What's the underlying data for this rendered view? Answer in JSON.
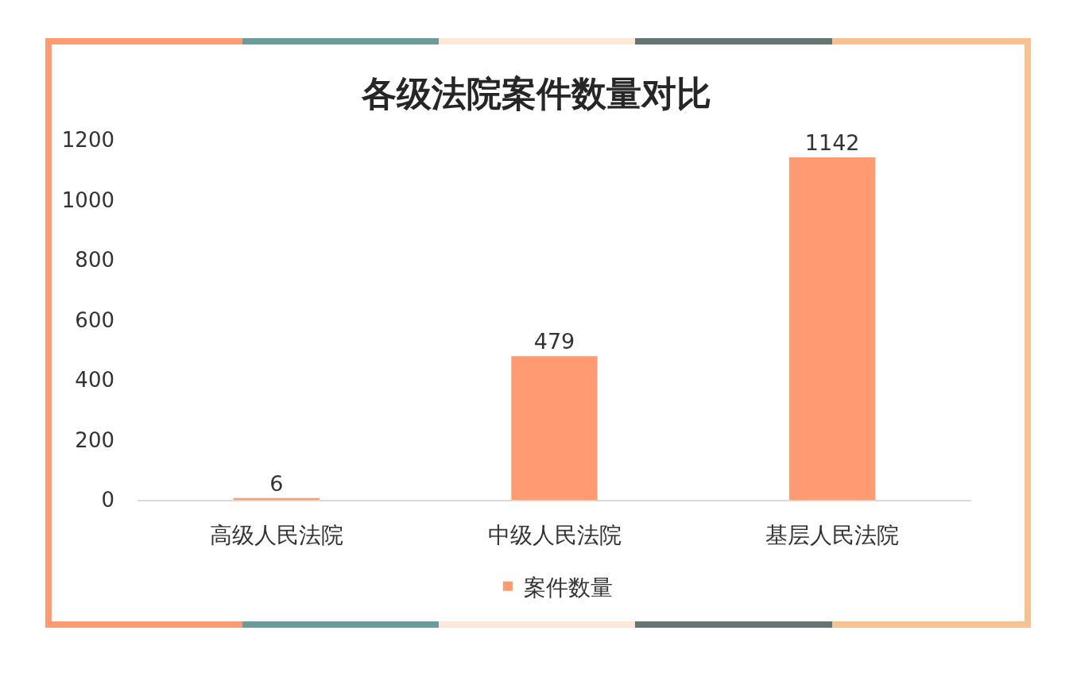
{
  "chart_data": {
    "type": "bar",
    "title": "各级法院案件数量对比",
    "categories": [
      "高级人民法院",
      "中级人民法院",
      "基层人民法院"
    ],
    "series": [
      {
        "name": "案件数量",
        "color": "#ff9a72",
        "values": [
          6,
          479,
          1142
        ]
      }
    ],
    "ylim": [
      0,
      1200
    ],
    "yticks": [
      0,
      200,
      400,
      600,
      800,
      1000,
      1200
    ],
    "grid": false,
    "legend": "bottom",
    "data_labels": true
  }
}
